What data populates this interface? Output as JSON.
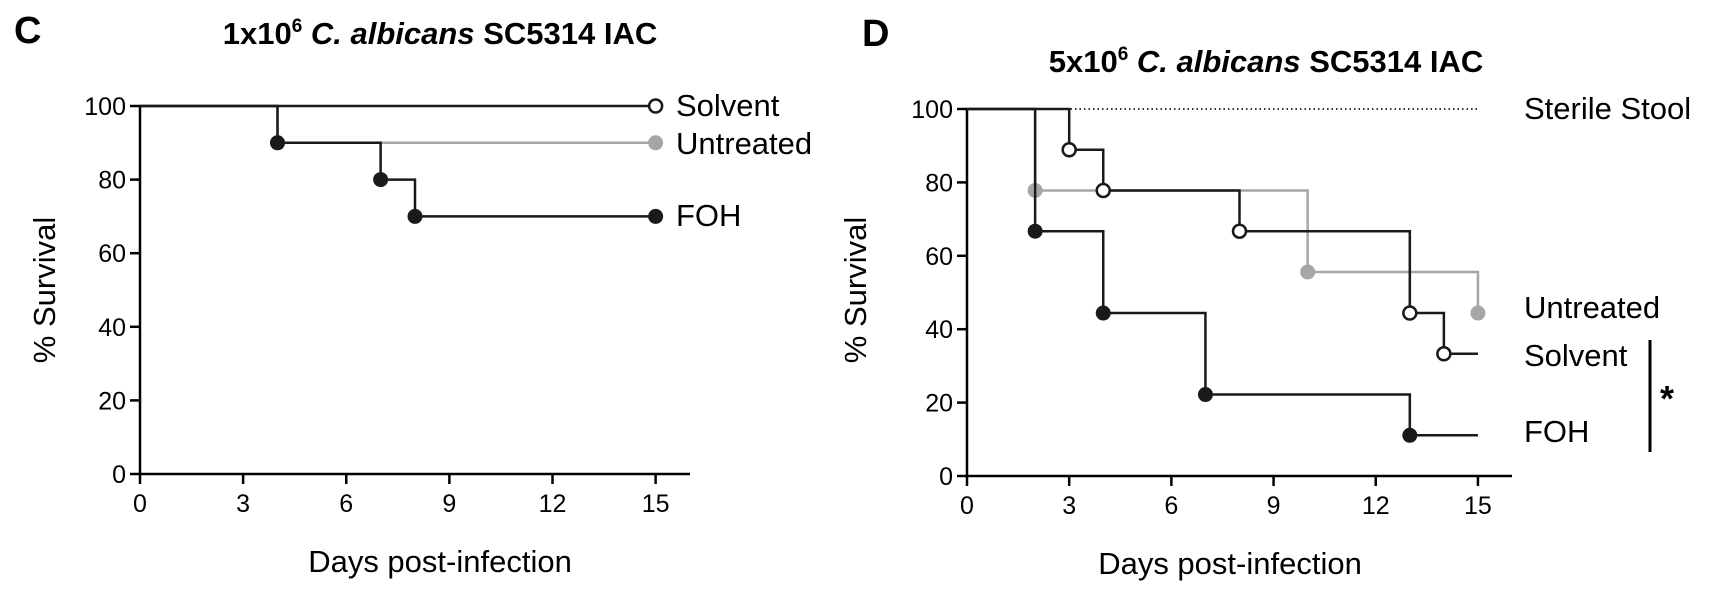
{
  "panels": [
    {
      "panel_label": "C",
      "title": {
        "prefix": "1x10",
        "superscript": "6",
        "italic": "C. albicans",
        "suffix": "SC5314 IAC"
      }
    },
    {
      "panel_label": "D",
      "title": {
        "prefix": "5x10",
        "superscript": "6",
        "italic": "C. albicans",
        "suffix": "SC5314 IAC"
      },
      "significance": "*"
    }
  ],
  "colors": {
    "black": "#1a1a1a",
    "gray": "#a6a6a6",
    "axis": "#000000"
  },
  "chart_data": [
    {
      "type": "line",
      "step": true,
      "title": "1x10⁶ C. albicans SC5314 IAC",
      "xlabel": "Days post-infection",
      "ylabel": "% Survival",
      "xlim": [
        0,
        16
      ],
      "ylim": [
        0,
        100
      ],
      "xticks": [
        0,
        3,
        6,
        9,
        12,
        15
      ],
      "yticks": [
        0,
        20,
        40,
        60,
        80,
        100
      ],
      "series": [
        {
          "name": "Solvent",
          "color": "#1a1a1a",
          "marker": "open",
          "x": [
            0,
            15
          ],
          "y": [
            100,
            100
          ],
          "marked": [
            15
          ]
        },
        {
          "name": "Untreated",
          "color": "#a6a6a6",
          "marker": "filled",
          "x": [
            0,
            4,
            15
          ],
          "y": [
            100,
            90,
            90
          ],
          "marked": [
            4,
            15
          ]
        },
        {
          "name": "FOH",
          "color": "#1a1a1a",
          "marker": "filled",
          "x": [
            0,
            4,
            7,
            8,
            15
          ],
          "y": [
            100,
            90,
            80,
            70,
            70
          ],
          "marked": [
            4,
            7,
            8,
            15
          ]
        }
      ]
    },
    {
      "type": "line",
      "step": true,
      "title": "5x10⁶ C. albicans SC5314 IAC",
      "xlabel": "Days post-infection",
      "ylabel": "% Survival",
      "xlim": [
        0,
        16
      ],
      "ylim": [
        0,
        100
      ],
      "xticks": [
        0,
        3,
        6,
        9,
        12,
        15
      ],
      "yticks": [
        0,
        20,
        40,
        60,
        80,
        100
      ],
      "series": [
        {
          "name": "Sterile Stool",
          "color": "#1a1a1a",
          "marker": "none",
          "dotted": true,
          "x": [
            0,
            15
          ],
          "y": [
            100,
            100
          ],
          "marked": []
        },
        {
          "name": "Untreated",
          "color": "#a6a6a6",
          "marker": "filled",
          "x": [
            0,
            2,
            10,
            15
          ],
          "y": [
            100,
            77.8,
            55.6,
            44.4
          ],
          "marked": [
            2,
            10,
            15
          ]
        },
        {
          "name": "Solvent",
          "color": "#1a1a1a",
          "marker": "open",
          "x": [
            0,
            3,
            4,
            8,
            13,
            14,
            15
          ],
          "y": [
            100,
            88.9,
            77.8,
            66.7,
            44.4,
            33.3,
            33.3
          ],
          "marked": [
            3,
            4,
            8,
            13,
            14
          ]
        },
        {
          "name": "FOH",
          "color": "#1a1a1a",
          "marker": "filled",
          "x": [
            0,
            2,
            4,
            7,
            13,
            15
          ],
          "y": [
            100,
            66.7,
            44.4,
            22.2,
            11.1,
            11.1
          ],
          "marked": [
            2,
            4,
            7,
            13
          ]
        }
      ]
    }
  ]
}
